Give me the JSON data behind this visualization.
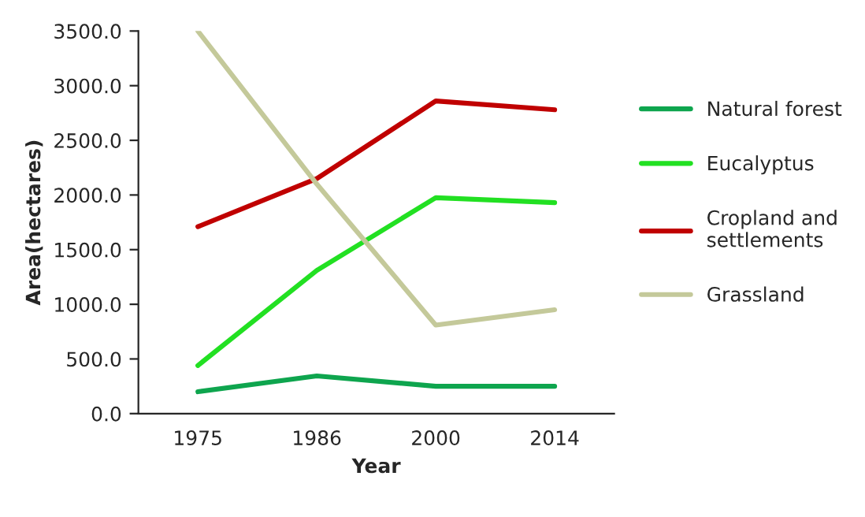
{
  "chart_data": {
    "type": "line",
    "xlabel": "Year",
    "ylabel": "Area(hectares)",
    "categories": [
      "1975",
      "1986",
      "2000",
      "2014"
    ],
    "series": [
      {
        "name": "Natural forest",
        "color": "#0ea54e",
        "values": [
          200,
          345,
          250,
          250
        ]
      },
      {
        "name": "Eucalyptus",
        "color": "#22e022",
        "values": [
          440,
          1310,
          1975,
          1930
        ]
      },
      {
        "name": "Cropland and\nsettlements",
        "color": "#c00000",
        "values": [
          1710,
          2150,
          2860,
          2780
        ]
      },
      {
        "name": "Grassland",
        "color": "#c4c99a",
        "values": [
          3500,
          2100,
          810,
          950
        ]
      }
    ],
    "ylim": [
      0,
      3500
    ],
    "yticks": [
      {
        "value": 0,
        "label": "0.0"
      },
      {
        "value": 500,
        "label": "500.0"
      },
      {
        "value": 1000,
        "label": "1000.0"
      },
      {
        "value": 1500,
        "label": "1500.0"
      },
      {
        "value": 2000,
        "label": "2000.0"
      },
      {
        "value": 2500,
        "label": "2500.0"
      },
      {
        "value": 3000,
        "label": "3000.0"
      },
      {
        "value": 3500,
        "label": "3500.0"
      }
    ],
    "grid": false,
    "legend": "right",
    "marker": "none",
    "line_style": "solid"
  }
}
